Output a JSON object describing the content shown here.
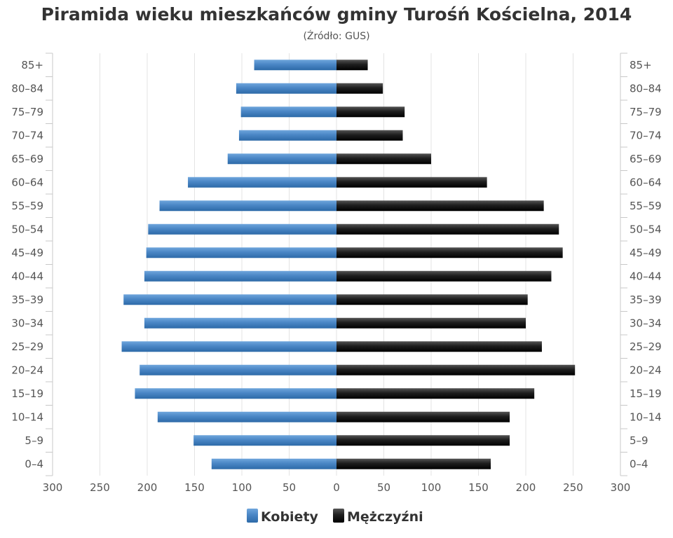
{
  "chart_data": {
    "type": "bar",
    "title": "Piramida wieku mieszkańców gminy Turośń Kościelna, 2014",
    "subtitle": "(Źródło: GUS)",
    "categories": [
      "85+",
      "80–84",
      "75–79",
      "70–74",
      "65–69",
      "60–64",
      "55–59",
      "50–54",
      "45–49",
      "40–44",
      "35–39",
      "30–34",
      "25–29",
      "20–24",
      "15–19",
      "10–14",
      "5–9",
      "0–4"
    ],
    "series": [
      {
        "name": "Kobiety",
        "color": "#4a86c5",
        "values": [
          87,
          106,
          101,
          103,
          115,
          157,
          187,
          199,
          201,
          203,
          225,
          203,
          227,
          208,
          213,
          189,
          151,
          132
        ]
      },
      {
        "name": "Mężczyźni",
        "color": "#222222",
        "values": [
          33,
          49,
          72,
          70,
          100,
          159,
          219,
          235,
          239,
          227,
          202,
          200,
          217,
          252,
          209,
          183,
          183,
          163
        ]
      }
    ],
    "xlim": [
      -300,
      300
    ],
    "x_ticks": [
      "300",
      "250",
      "200",
      "150",
      "100",
      "50",
      "0",
      "50",
      "100",
      "150",
      "200",
      "250",
      "300"
    ],
    "grid": true,
    "legend_position": "bottom"
  }
}
